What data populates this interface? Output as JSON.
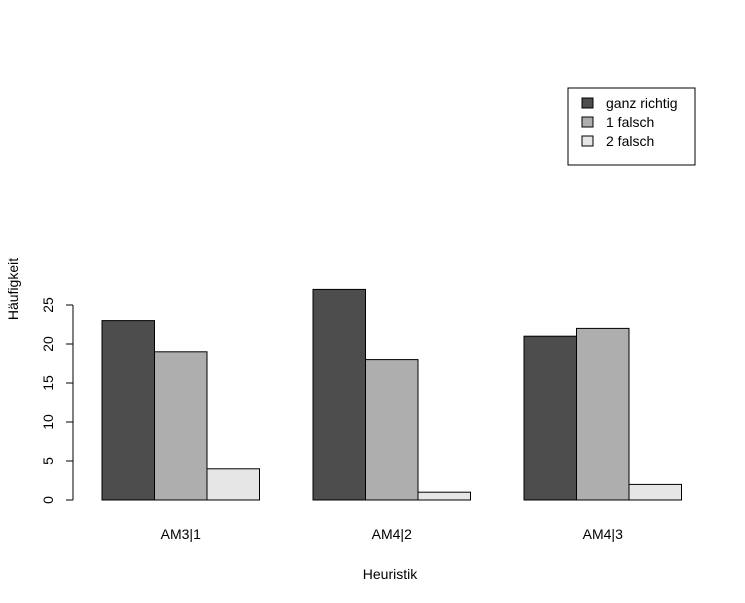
{
  "chart_data": {
    "type": "bar",
    "categories": [
      "AM3|1",
      "AM4|2",
      "AM4|3"
    ],
    "series": [
      {
        "name": "ganz richtig",
        "values": [
          23,
          27,
          21
        ],
        "color": "#4d4d4d"
      },
      {
        "name": "1 falsch",
        "values": [
          19,
          18,
          22
        ],
        "color": "#aeaeae"
      },
      {
        "name": "2 falsch",
        "values": [
          4,
          1,
          2
        ],
        "color": "#e6e6e6"
      }
    ],
    "title": "",
    "xlabel": "Heuristik",
    "ylabel": "Häufigkeit",
    "ylim": [
      0,
      25
    ],
    "yticks": [
      0,
      5,
      10,
      15,
      20,
      25
    ],
    "grid": false,
    "legend": "top-right"
  }
}
